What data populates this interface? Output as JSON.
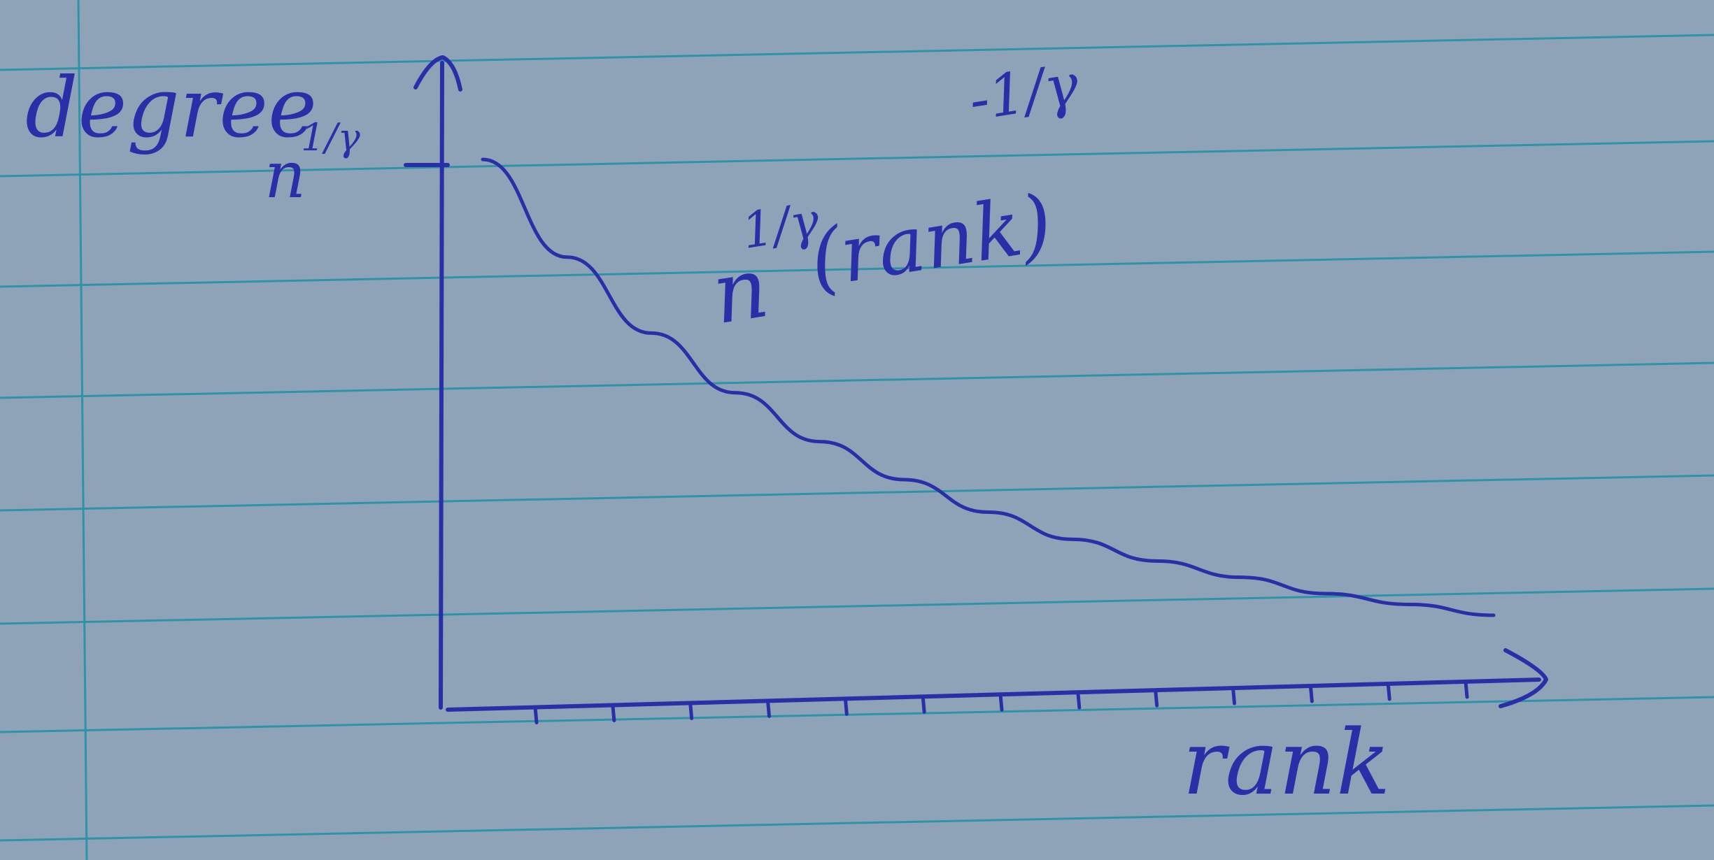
{
  "chart_data": {
    "type": "line",
    "title": "",
    "xlabel": "rank",
    "ylabel": "degree",
    "x_ticks": 13,
    "y_tick_label": "n^{1/γ}",
    "annotation": {
      "base": "n",
      "base_exponent": "1/γ",
      "body": "(rank)",
      "body_exponent": "-1/γ"
    },
    "series": [
      {
        "x": [
          1,
          2,
          3,
          4,
          5,
          6,
          7,
          8,
          9,
          10,
          11,
          12,
          13
        ],
        "y": [
          1.0,
          0.82,
          0.68,
          0.57,
          0.48,
          0.41,
          0.35,
          0.3,
          0.26,
          0.23,
          0.2,
          0.18,
          0.16
        ]
      }
    ],
    "grid": false,
    "legend": "none"
  },
  "colors": {
    "paper": "#8fa3b8",
    "rule_line": "#2e93a8",
    "ink": "#2a2fa8"
  }
}
